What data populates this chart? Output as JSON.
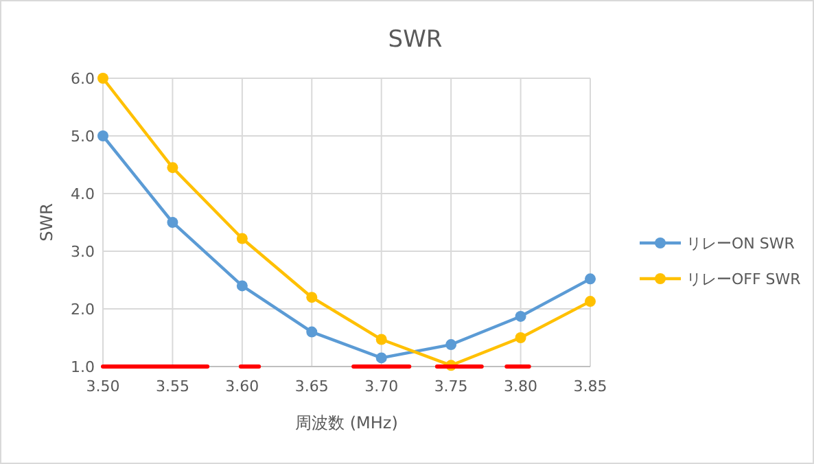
{
  "chart_data": {
    "type": "line",
    "title": "SWR",
    "xlabel": "周波数 (MHz)",
    "ylabel": "SWR",
    "x": [
      3.5,
      3.55,
      3.6,
      3.65,
      3.7,
      3.75,
      3.8,
      3.85
    ],
    "series": [
      {
        "name": "リレーON SWR",
        "color": "#5b9bd5",
        "values": [
          5.0,
          3.5,
          2.4,
          1.6,
          1.15,
          1.38,
          1.87,
          2.52
        ]
      },
      {
        "name": "リレーOFF SWR",
        "color": "#ffc000",
        "values": [
          6.0,
          4.45,
          3.22,
          2.2,
          1.47,
          1.02,
          1.5,
          2.13
        ]
      },
      {
        "color": "#ff0000",
        "marker": "none",
        "x": [
          3.5,
          3.575
        ],
        "values": [
          1,
          1
        ]
      },
      {
        "color": "#ff0000",
        "marker": "none",
        "x": [
          3.599,
          3.612
        ],
        "values": [
          1,
          1
        ]
      },
      {
        "color": "#ff0000",
        "marker": "none",
        "x": [
          3.68,
          3.72
        ],
        "values": [
          1,
          1
        ]
      },
      {
        "color": "#ff0000",
        "marker": "none",
        "x": [
          3.74,
          3.772
        ],
        "values": [
          1,
          1
        ]
      },
      {
        "color": "#ff0000",
        "marker": "none",
        "x": [
          3.79,
          3.806
        ],
        "values": [
          1,
          1
        ]
      }
    ],
    "xlim": [
      3.5,
      3.85
    ],
    "xticks": [
      {
        "value": 3.5,
        "label": "3.50"
      },
      {
        "value": 3.55,
        "label": "3.55"
      },
      {
        "value": 3.6,
        "label": "3.60"
      },
      {
        "value": 3.65,
        "label": "3.65"
      },
      {
        "value": 3.7,
        "label": "3.70"
      },
      {
        "value": 3.75,
        "label": "3.75"
      },
      {
        "value": 3.8,
        "label": "3.80"
      },
      {
        "value": 3.85,
        "label": "3.85"
      }
    ],
    "ylim": [
      1,
      6
    ],
    "yticks": [
      {
        "value": 1,
        "label": "1.0"
      },
      {
        "value": 2,
        "label": "2.0"
      },
      {
        "value": 3,
        "label": "3.0"
      },
      {
        "value": 4,
        "label": "4.0"
      },
      {
        "value": 5,
        "label": "5.0"
      },
      {
        "value": 6,
        "label": "6.0"
      }
    ],
    "grid": true,
    "legend": "right",
    "marker": "circle",
    "line_style": "solid"
  }
}
